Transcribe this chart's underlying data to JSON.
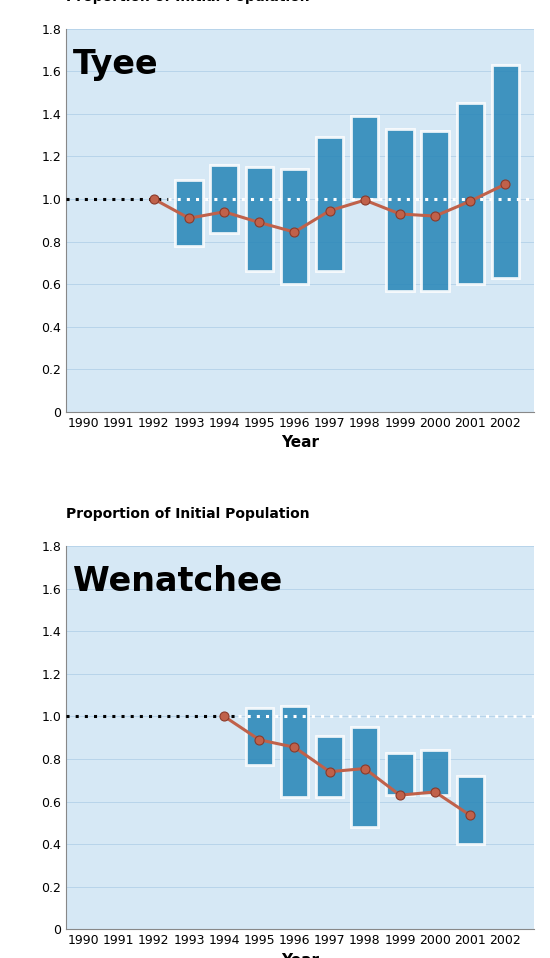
{
  "tyee": {
    "title": "Tyee",
    "ylabel": "Proportion of Initial Population",
    "xlabel": "Year",
    "line_years": [
      1992,
      1993,
      1994,
      1995,
      1996,
      1997,
      1998,
      1999,
      2000,
      2001,
      2002
    ],
    "line_values": [
      1.0,
      0.91,
      0.94,
      0.89,
      0.845,
      0.945,
      0.995,
      0.93,
      0.92,
      0.99,
      1.07
    ],
    "bar_years": [
      1993,
      1994,
      1995,
      1996,
      1997,
      1998,
      1999,
      2000,
      2001,
      2002
    ],
    "bar_lo": [
      0.78,
      0.84,
      0.66,
      0.6,
      0.66,
      1.0,
      0.57,
      0.57,
      0.6,
      0.63
    ],
    "bar_hi": [
      1.09,
      1.16,
      1.15,
      1.14,
      1.29,
      1.39,
      1.33,
      1.32,
      1.45,
      1.63
    ],
    "ylim": [
      0.0,
      1.8
    ],
    "yticks": [
      0.0,
      0.2,
      0.4,
      0.6,
      0.8,
      1.0,
      1.2,
      1.4,
      1.6,
      1.8
    ],
    "xlim": [
      1989.5,
      2002.8
    ],
    "xticks": [
      1990,
      1991,
      1992,
      1993,
      1994,
      1995,
      1996,
      1997,
      1998,
      1999,
      2000,
      2001,
      2002
    ],
    "black_dotted_end": 1992.4
  },
  "wenatchee": {
    "title": "Wenatchee",
    "ylabel": "Proportion of Initial Population",
    "xlabel": "Year",
    "line_years": [
      1994,
      1995,
      1996,
      1997,
      1998,
      1999,
      2000,
      2001
    ],
    "line_values": [
      1.0,
      0.89,
      0.855,
      0.74,
      0.755,
      0.63,
      0.645,
      0.535
    ],
    "bar_years": [
      1995,
      1996,
      1997,
      1998,
      1999,
      2000,
      2001
    ],
    "bar_lo": [
      0.77,
      0.62,
      0.62,
      0.48,
      0.63,
      0.63,
      0.4
    ],
    "bar_hi": [
      1.04,
      1.05,
      0.91,
      0.95,
      0.83,
      0.84,
      0.72
    ],
    "ylim": [
      0.0,
      1.8
    ],
    "yticks": [
      0.0,
      0.2,
      0.4,
      0.6,
      0.8,
      1.0,
      1.2,
      1.4,
      1.6,
      1.8
    ],
    "xlim": [
      1989.5,
      2002.8
    ],
    "xticks": [
      1990,
      1991,
      1992,
      1993,
      1994,
      1995,
      1996,
      1997,
      1998,
      1999,
      2000,
      2001,
      2002
    ],
    "black_dotted_end": 1994.4
  },
  "bar_color": "#2a87b8",
  "bar_alpha": 0.88,
  "line_color": "#c0614a",
  "marker_color": "#c0614a",
  "marker_edge_color": "#8b3a2a",
  "bg_color": "#d6e8f5",
  "fig_bg_color": "#ffffff",
  "bar_width": 0.78,
  "title_fontsize": 24,
  "ylabel_fontsize": 10,
  "xlabel_fontsize": 11,
  "tick_fontsize": 9,
  "dotted_lw": 2.2
}
